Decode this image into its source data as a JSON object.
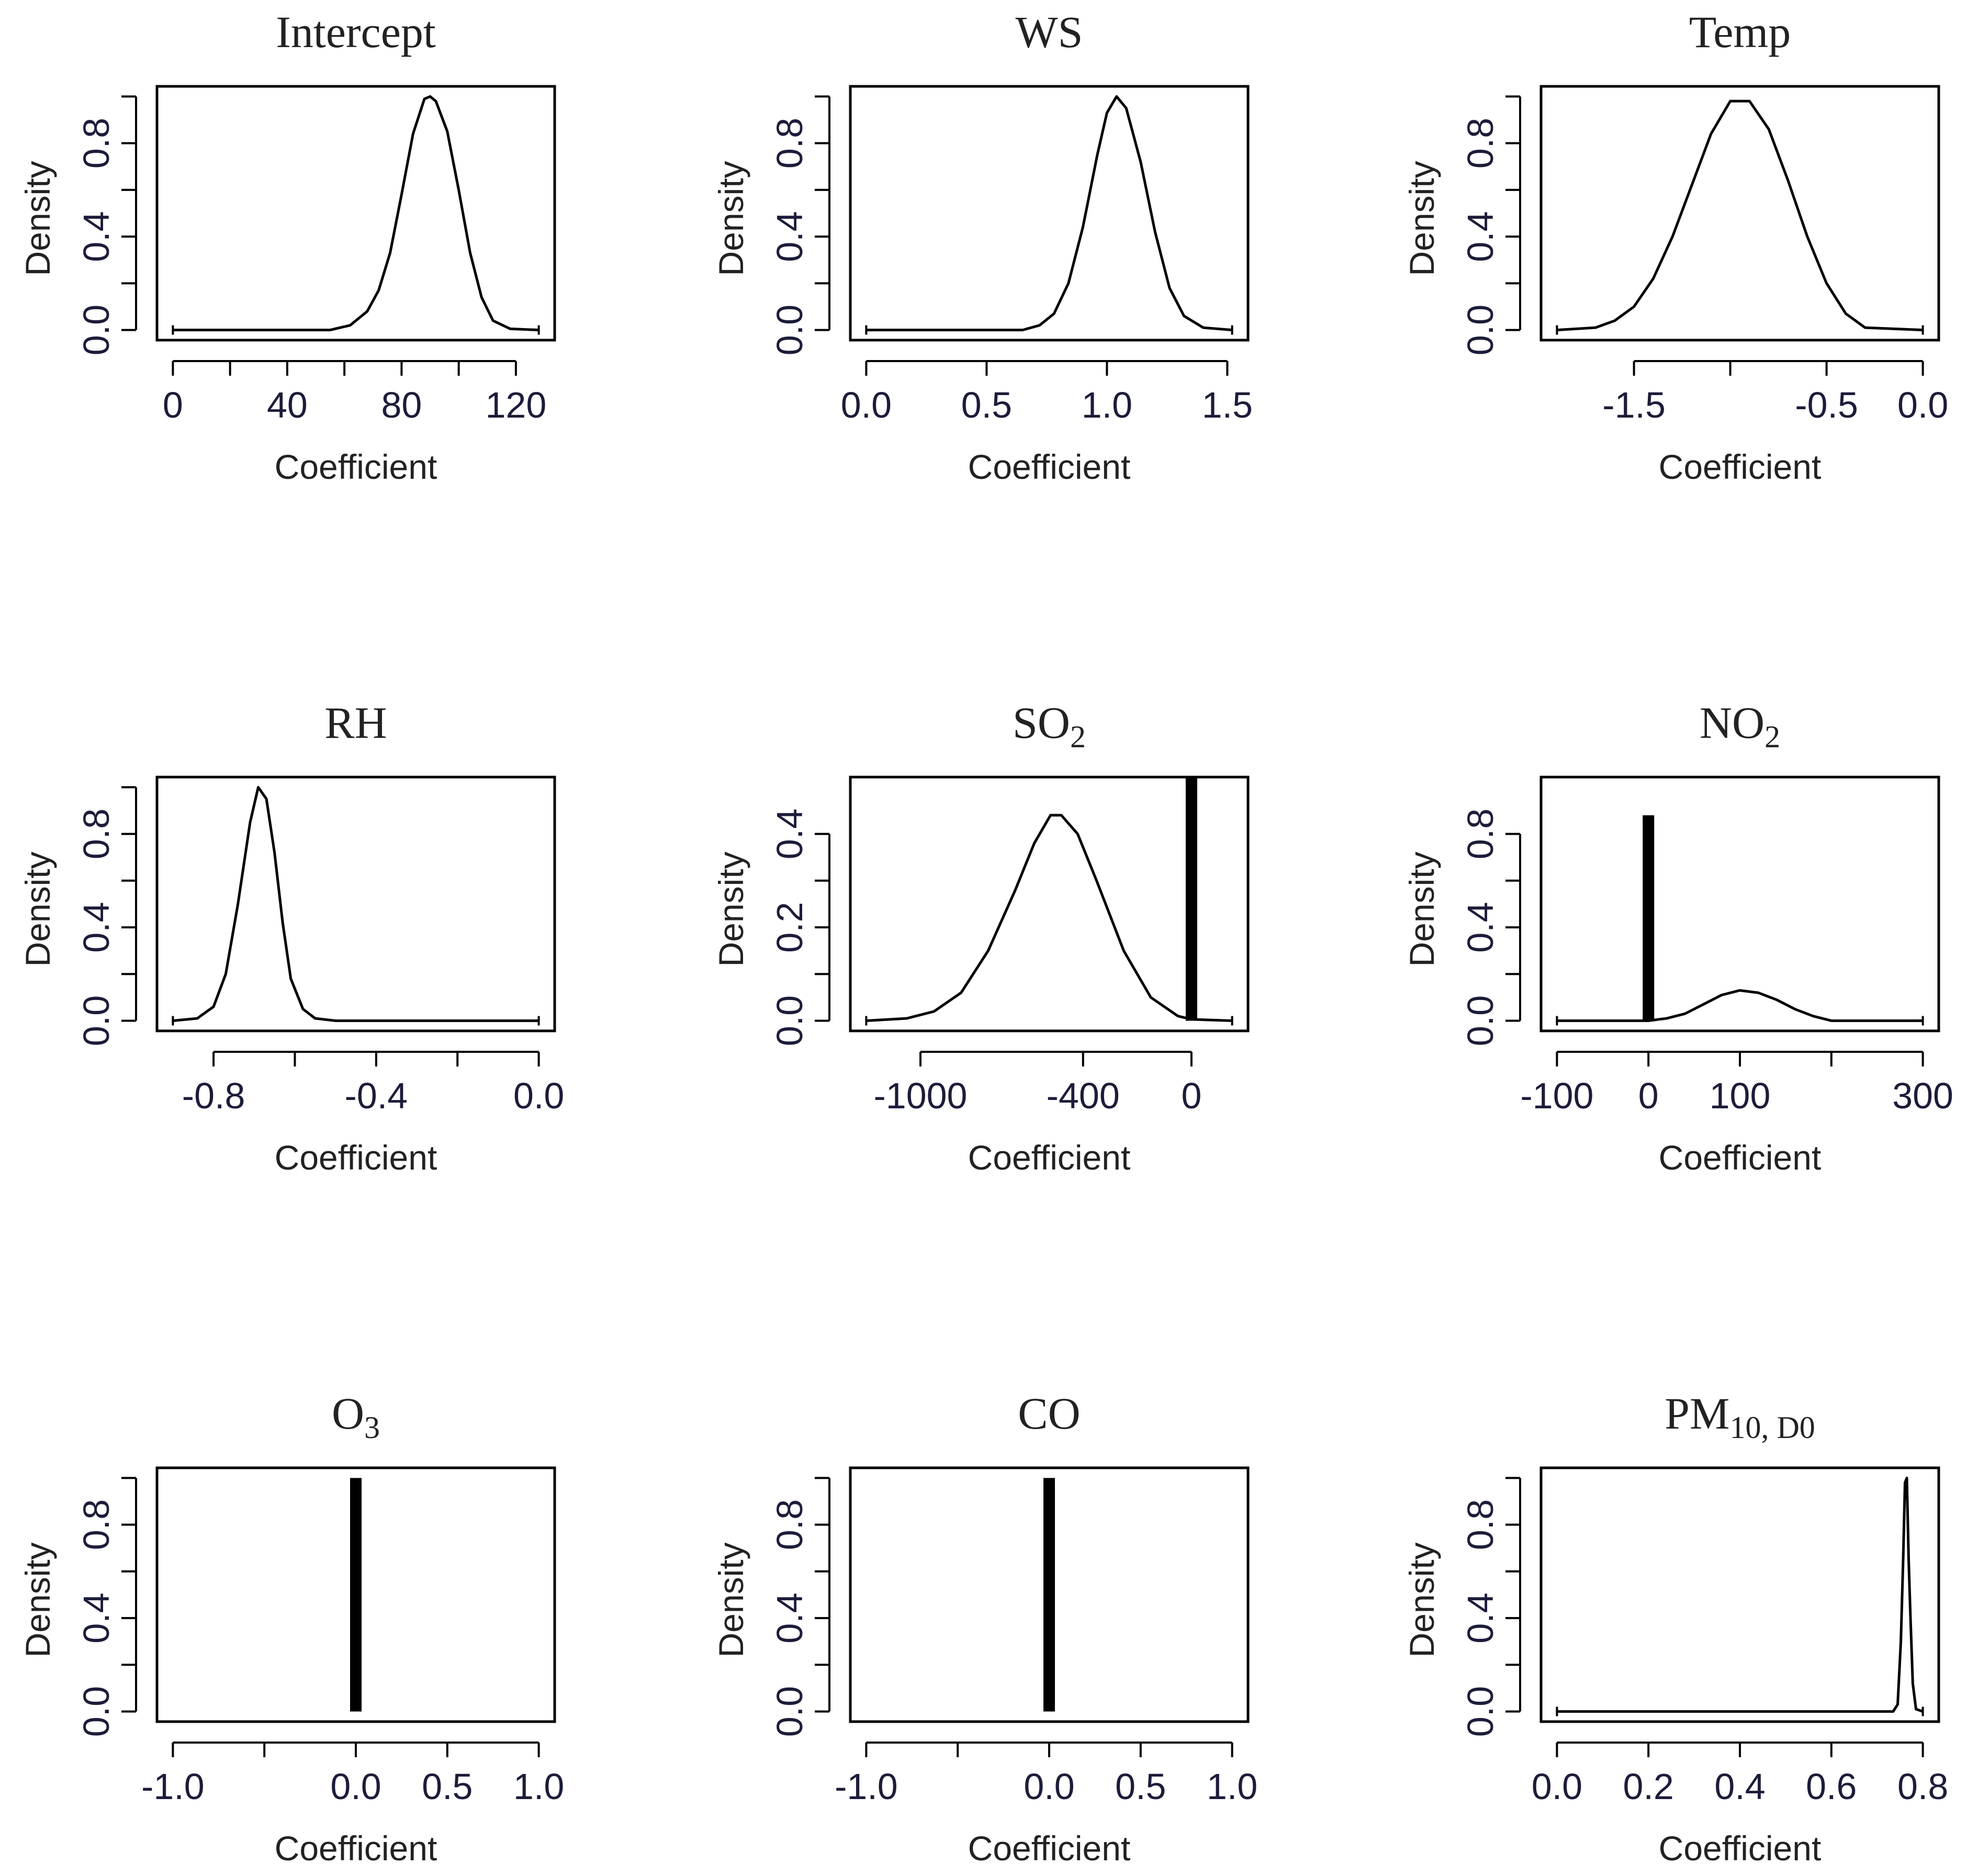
{
  "chart_data": [
    {
      "type": "line",
      "title": "Intercept",
      "xlabel": "Coefficient",
      "ylabel": "Density",
      "xlim": [
        0,
        128
      ],
      "ylim": [
        0,
        1.0
      ],
      "xticks": [
        0,
        20,
        40,
        60,
        80,
        100,
        120
      ],
      "xtick_labels": [
        "0",
        "",
        "40",
        "",
        "80",
        "",
        "120"
      ],
      "yticks": [
        0,
        0.2,
        0.4,
        0.6,
        0.8,
        1.0
      ],
      "ytick_labels": [
        "0.0",
        "",
        "0.4",
        "",
        "0.8",
        ""
      ],
      "series": [
        {
          "name": "density",
          "x": [
            0,
            55,
            62,
            68,
            72,
            76,
            80,
            84,
            88,
            90,
            92,
            96,
            100,
            104,
            108,
            112,
            118,
            128
          ],
          "y": [
            0,
            0,
            0.02,
            0.08,
            0.17,
            0.33,
            0.58,
            0.84,
            0.99,
            1.0,
            0.98,
            0.85,
            0.6,
            0.33,
            0.14,
            0.04,
            0.005,
            0
          ]
        }
      ],
      "spikes": []
    },
    {
      "type": "line",
      "title": "WS",
      "xlabel": "Coefficient",
      "ylabel": "Density",
      "xlim": [
        0,
        1.52
      ],
      "ylim": [
        0,
        1.0
      ],
      "xticks": [
        0.0,
        0.5,
        1.0,
        1.5
      ],
      "xtick_labels": [
        "0.0",
        "0.5",
        "1.0",
        "1.5"
      ],
      "yticks": [
        0,
        0.2,
        0.4,
        0.6,
        0.8,
        1.0
      ],
      "ytick_labels": [
        "0.0",
        "",
        "0.4",
        "",
        "0.8",
        ""
      ],
      "series": [
        {
          "name": "density",
          "x": [
            0,
            0.65,
            0.72,
            0.78,
            0.84,
            0.9,
            0.96,
            1.0,
            1.04,
            1.08,
            1.14,
            1.2,
            1.26,
            1.32,
            1.4,
            1.52
          ],
          "y": [
            0,
            0,
            0.02,
            0.07,
            0.2,
            0.44,
            0.75,
            0.93,
            1.0,
            0.95,
            0.72,
            0.42,
            0.18,
            0.06,
            0.01,
            0
          ]
        }
      ],
      "spikes": []
    },
    {
      "type": "line",
      "title": "Temp",
      "xlabel": "Coefficient",
      "ylabel": "Density",
      "xlim": [
        -1.9,
        0.0
      ],
      "ylim": [
        0,
        1.0
      ],
      "xticks": [
        -1.5,
        -1.0,
        -0.5,
        0.0
      ],
      "xtick_labels": [
        "-1.5",
        "",
        "-0.5",
        "0.0"
      ],
      "yticks": [
        0,
        0.2,
        0.4,
        0.6,
        0.8,
        1.0
      ],
      "ytick_labels": [
        "0.0",
        "",
        "0.4",
        "",
        "0.8",
        ""
      ],
      "series": [
        {
          "name": "density",
          "x": [
            -1.9,
            -1.7,
            -1.6,
            -1.5,
            -1.4,
            -1.3,
            -1.2,
            -1.1,
            -1.0,
            -0.9,
            -0.8,
            -0.7,
            -0.6,
            -0.5,
            -0.4,
            -0.3,
            0.0
          ],
          "y": [
            0,
            0.01,
            0.04,
            0.1,
            0.22,
            0.4,
            0.62,
            0.84,
            0.98,
            0.98,
            0.86,
            0.64,
            0.4,
            0.2,
            0.07,
            0.01,
            0
          ]
        }
      ],
      "spikes": []
    },
    {
      "type": "line",
      "title": "RH",
      "xlabel": "Coefficient",
      "ylabel": "Density",
      "xlim": [
        -0.9,
        0.0
      ],
      "ylim": [
        0,
        1.0
      ],
      "xticks": [
        -0.8,
        -0.6,
        -0.4,
        -0.2,
        0.0
      ],
      "xtick_labels": [
        "-0.8",
        "",
        "-0.4",
        "",
        "0.0"
      ],
      "yticks": [
        0,
        0.2,
        0.4,
        0.6,
        0.8,
        1.0
      ],
      "ytick_labels": [
        "0.0",
        "",
        "0.4",
        "",
        "0.8",
        ""
      ],
      "series": [
        {
          "name": "density",
          "x": [
            -0.9,
            -0.84,
            -0.8,
            -0.77,
            -0.74,
            -0.71,
            -0.69,
            -0.67,
            -0.65,
            -0.63,
            -0.61,
            -0.58,
            -0.55,
            -0.5,
            0.0
          ],
          "y": [
            0,
            0.01,
            0.06,
            0.2,
            0.5,
            0.85,
            1.0,
            0.95,
            0.72,
            0.42,
            0.18,
            0.05,
            0.01,
            0,
            0
          ]
        }
      ],
      "spikes": []
    },
    {
      "type": "line",
      "title": "SO",
      "title_subscript": "2",
      "xlabel": "Coefficient",
      "ylabel": "Density",
      "xlim": [
        -1200,
        150
      ],
      "ylim": [
        0,
        0.5
      ],
      "xticks": [
        -1000,
        -400,
        0
      ],
      "xtick_labels": [
        "-1000",
        "-400",
        "0"
      ],
      "yticks": [
        0,
        0.1,
        0.2,
        0.3,
        0.4
      ],
      "ytick_labels": [
        "0.0",
        "",
        "0.2",
        "",
        "0.4"
      ],
      "series": [
        {
          "name": "density",
          "x": [
            -1200,
            -1050,
            -950,
            -850,
            -750,
            -650,
            -580,
            -520,
            -480,
            -420,
            -350,
            -250,
            -150,
            -50,
            0,
            150
          ],
          "y": [
            0,
            0.005,
            0.02,
            0.06,
            0.15,
            0.28,
            0.38,
            0.44,
            0.44,
            0.4,
            0.3,
            0.15,
            0.05,
            0.01,
            0.003,
            0
          ]
        }
      ],
      "spikes": [
        {
          "x": 0,
          "y": 0.52
        }
      ]
    },
    {
      "type": "line",
      "title": "NO",
      "title_subscript": "2",
      "xlabel": "Coefficient",
      "ylabel": "Density",
      "xlim": [
        -100,
        300
      ],
      "ylim": [
        0,
        1.0
      ],
      "xticks": [
        -100,
        0,
        100,
        200,
        300
      ],
      "xtick_labels": [
        "-100",
        "0",
        "100",
        "",
        "300"
      ],
      "yticks": [
        0,
        0.2,
        0.4,
        0.6,
        0.8
      ],
      "ytick_labels": [
        "0.0",
        "",
        "0.4",
        "",
        "0.8"
      ],
      "series": [
        {
          "name": "density",
          "x": [
            -100,
            0,
            20,
            40,
            60,
            80,
            100,
            120,
            140,
            160,
            180,
            200,
            300
          ],
          "y": [
            0,
            0,
            0.01,
            0.03,
            0.07,
            0.11,
            0.13,
            0.12,
            0.09,
            0.05,
            0.02,
            0,
            0
          ]
        }
      ],
      "spikes": [
        {
          "x": 0,
          "y": 0.88
        }
      ]
    },
    {
      "type": "line",
      "title": "O",
      "title_subscript": "3",
      "xlabel": "Coefficient",
      "ylabel": "Density",
      "xlim": [
        -1.0,
        1.0
      ],
      "ylim": [
        0,
        1.0
      ],
      "xticks": [
        -1.0,
        -0.5,
        0.0,
        0.5,
        1.0
      ],
      "xtick_labels": [
        "-1.0",
        "",
        "0.0",
        "0.5",
        "1.0"
      ],
      "yticks": [
        0,
        0.2,
        0.4,
        0.6,
        0.8,
        1.0
      ],
      "ytick_labels": [
        "0.0",
        "",
        "0.4",
        "",
        "0.8",
        ""
      ],
      "series": [],
      "spikes": [
        {
          "x": 0.0,
          "y": 1.0
        }
      ]
    },
    {
      "type": "line",
      "title": "CO",
      "xlabel": "Coefficient",
      "ylabel": "Density",
      "xlim": [
        -1.0,
        1.0
      ],
      "ylim": [
        0,
        1.0
      ],
      "xticks": [
        -1.0,
        -0.5,
        0.0,
        0.5,
        1.0
      ],
      "xtick_labels": [
        "-1.0",
        "",
        "0.0",
        "0.5",
        "1.0"
      ],
      "yticks": [
        0,
        0.2,
        0.4,
        0.6,
        0.8,
        1.0
      ],
      "ytick_labels": [
        "0.0",
        "",
        "0.4",
        "",
        "0.8",
        ""
      ],
      "series": [],
      "spikes": [
        {
          "x": 0.0,
          "y": 1.0
        }
      ]
    },
    {
      "type": "line",
      "title": "PM",
      "title_subscript": "10, D0",
      "xlabel": "Coefficient",
      "ylabel": "Density",
      "xlim": [
        0.0,
        0.8
      ],
      "ylim": [
        0,
        1.0
      ],
      "xticks": [
        0.0,
        0.2,
        0.4,
        0.6,
        0.8
      ],
      "xtick_labels": [
        "0.0",
        "0.2",
        "0.4",
        "0.6",
        "0.8"
      ],
      "yticks": [
        0,
        0.2,
        0.4,
        0.6,
        0.8,
        1.0
      ],
      "ytick_labels": [
        "0.0",
        "",
        "0.4",
        "",
        "0.8",
        ""
      ],
      "series": [
        {
          "name": "density",
          "x": [
            0.0,
            0.735,
            0.745,
            0.752,
            0.757,
            0.761,
            0.765,
            0.769,
            0.773,
            0.778,
            0.785,
            0.8
          ],
          "y": [
            0,
            0,
            0.03,
            0.3,
            0.65,
            0.98,
            1.0,
            0.65,
            0.4,
            0.12,
            0.01,
            0
          ]
        }
      ],
      "spikes": []
    }
  ]
}
